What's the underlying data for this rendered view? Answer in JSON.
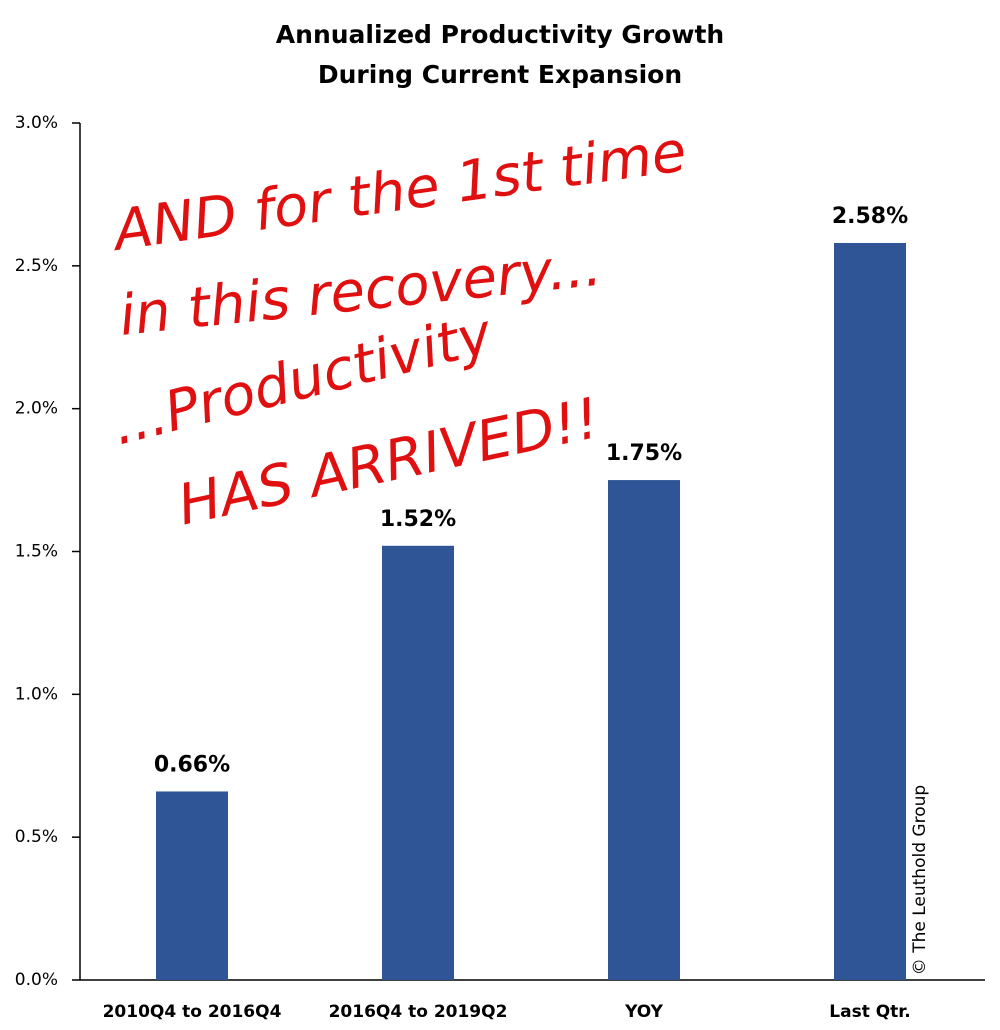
{
  "chart_data": {
    "type": "bar",
    "title": [
      "Annualized Productivity Growth",
      "During Current Expansion"
    ],
    "categories": [
      "2010Q4 to 2016Q4",
      "2016Q4 to 2019Q2",
      "YOY",
      "Last Qtr."
    ],
    "values": [
      0.66,
      1.52,
      1.75,
      2.58
    ],
    "value_labels": [
      "0.66%",
      "1.52%",
      "1.75%",
      "2.58%"
    ],
    "color": "#2f5597",
    "ylim": [
      0,
      3
    ],
    "yticks": [
      {
        "value": 0,
        "label": "0.0%"
      },
      {
        "value": 0.5,
        "label": "0.5%"
      },
      {
        "value": 1,
        "label": "1.0%"
      },
      {
        "value": 1.5,
        "label": "1.5%"
      },
      {
        "value": 2,
        "label": "2.0%"
      },
      {
        "value": 2.5,
        "label": "2.5%"
      },
      {
        "value": 3,
        "label": "3.0%"
      }
    ],
    "grid": false,
    "annotations": [
      "AND for the 1st time",
      "in this recovery...",
      "...Productivity",
      "HAS ARRIVED!!"
    ],
    "annotation_color": "#e01010",
    "credit": "© The Leuthold Group"
  }
}
